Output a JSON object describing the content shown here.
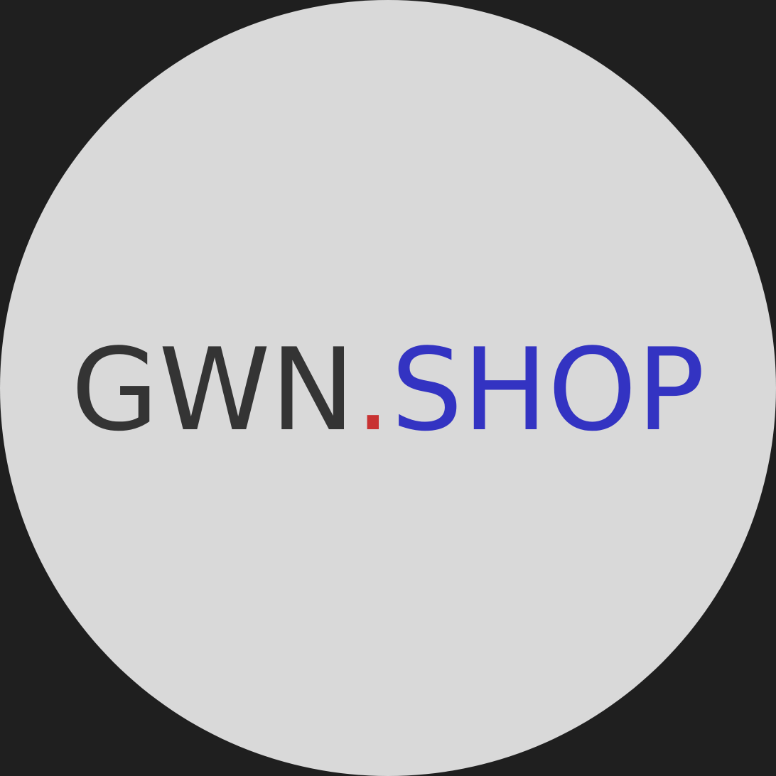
{
  "logo": {
    "primary_text": "GWN",
    "separator_text": ".",
    "secondary_text": "SHOP",
    "colors": {
      "page_background": "#1f1f1f",
      "badge_background": "#d9d9d9",
      "primary_text": "#343434",
      "separator_dot": "#c83232",
      "secondary_text": "#3333c2"
    }
  }
}
